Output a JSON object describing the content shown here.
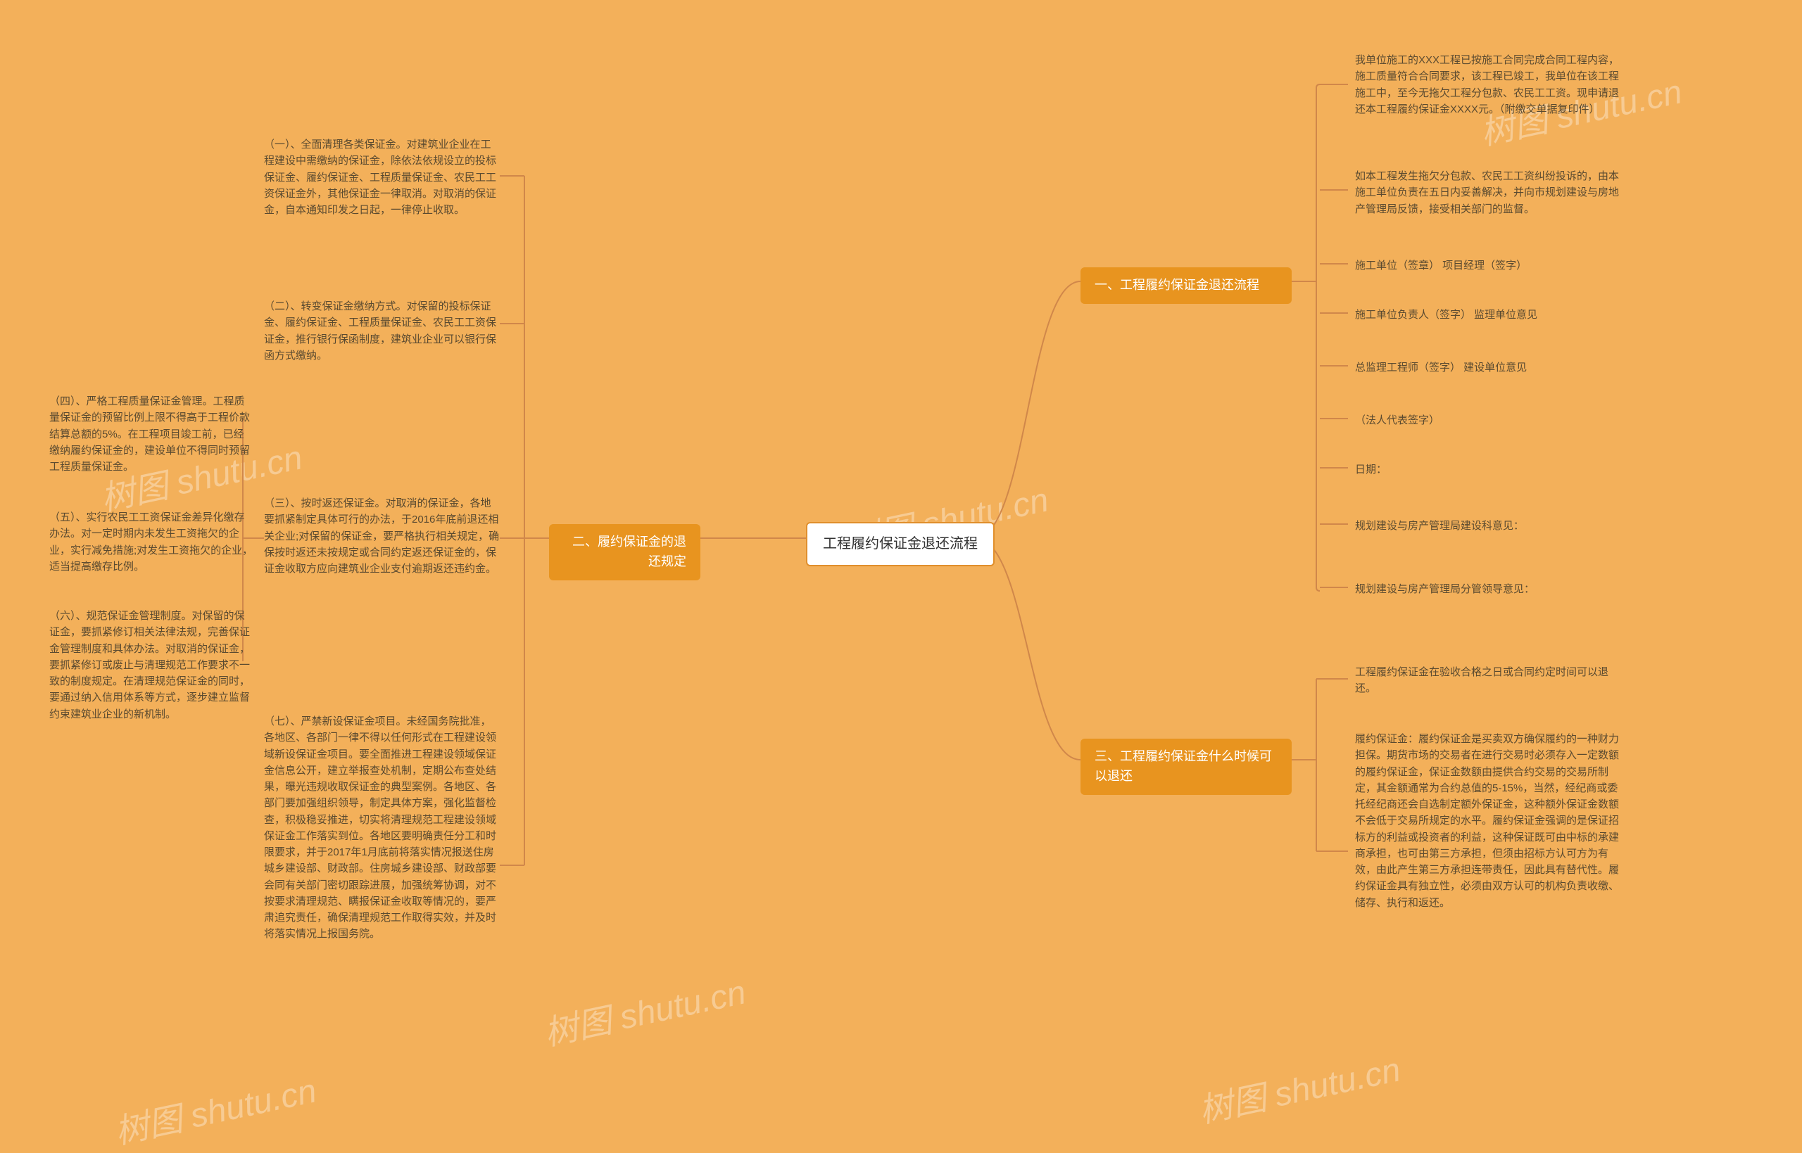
{
  "background_color": "#f3b05a",
  "root_bg": "#ffffff",
  "root_border": "#e08f2c",
  "branch_bg": "#e8941f",
  "branch_fg": "#ffffff",
  "leaf_fg": "#5a4a30",
  "connector_color": "#d0874a",
  "watermark_text": "树图 shutu.cn",
  "root": {
    "label": "工程履约保证金退还流程"
  },
  "right": [
    {
      "label": "一、工程履约保证金退还流程",
      "children": [
        "我单位施工的XXX工程已按施工合同完成合同工程内容，施工质量符合合同要求，该工程已竣工，我单位在该工程施工中，至今无拖欠工程分包款、农民工工资。现申请退还本工程履约保证金XXXX元。（附缴交单据复印件）",
        "如本工程发生拖欠分包款、农民工工资纠纷投诉的，由本施工单位负责在五日内妥善解决，并向市规划建设与房地产管理局反馈，接受相关部门的监督。",
        "施工单位（签章） 项目经理（签字）",
        "施工单位负责人（签字） 监理单位意见",
        "总监理工程师（签字） 建设单位意见",
        "（法人代表签字）",
        "日期：",
        "规划建设与房产管理局建设科意见：",
        "规划建设与房产管理局分管领导意见："
      ]
    },
    {
      "label": "三、工程履约保证金什么时候可以退还",
      "children": [
        "工程履约保证金在验收合格之日或合同约定时间可以退还。",
        "履约保证金：履约保证金是买卖双方确保履约的一种财力担保。期货市场的交易者在进行交易时必须存入一定数额的履约保证金，保证金数额由提供合约交易的交易所制定，其金额通常为合约总值的5-15%，当然，经纪商或委托经纪商还会自选制定额外保证金，这种额外保证金数额不会低于交易所规定的水平。履约保证金强调的是保证招标方的利益或投资者的利益，这种保证既可由中标的承建商承担，也可由第三方承担，但须由招标方认可方为有效，由此产生第三方承担连带责任，因此具有替代性。履约保证金具有独立性，必须由双方认可的机构负责收缴、储存、执行和返还。"
      ]
    }
  ],
  "left": [
    {
      "label": "二、履约保证金的退还规定",
      "children_direct": [
        "（一）、全面清理各类保证金。对建筑业企业在工程建设中需缴纳的保证金，除依法依规设立的投标保证金、履约保证金、工程质量保证金、农民工工资保证金外，其他保证金一律取消。对取消的保证金，自本通知印发之日起，一律停止收取。",
        "（二）、转变保证金缴纳方式。对保留的投标保证金、履约保证金、工程质量保证金、农民工工资保证金，推行银行保函制度，建筑业企业可以银行保函方式缴纳。",
        "（三）、按时返还保证金。对取消的保证金，各地要抓紧制定具体可行的办法，于2016年底前退还相关企业;对保留的保证金，要严格执行相关规定，确保按时返还未按规定或合同约定返还保证金的，保证金收取方应向建筑业企业支付逾期返还违约金。",
        "（七）、严禁新设保证金项目。未经国务院批准，各地区、各部门一律不得以任何形式在工程建设领域新设保证金项目。要全面推进工程建设领域保证金信息公开，建立举报查处机制，定期公布查处结果，曝光违规收取保证金的典型案例。各地区、各部门要加强组织领导，制定具体方案，强化监督检查，积极稳妥推进，切实将清理规范工程建设领域保证金工作落实到位。各地区要明确责任分工和时限要求，并于2017年1月底前将落实情况报送住房城乡建设部、财政部。住房城乡建设部、财政部要会同有关部门密切跟踪进展，加强统筹协调，对不按要求清理规范、瞒报保证金收取等情况的，要严肃追究责任，确保清理规范工作取得实效，并及时将落实情况上报国务院。"
      ],
      "sub_of_third": [
        "（四）、严格工程质量保证金管理。工程质量保证金的预留比例上限不得高于工程价款结算总额的5%。在工程项目竣工前，已经缴纳履约保证金的，建设单位不得同时预留工程质量保证金。",
        "（五）、实行农民工工资保证金差异化缴存办法。对一定时期内未发生工资拖欠的企业，实行减免措施;对发生工资拖欠的企业，适当提高缴存比例。",
        "（六）、规范保证金管理制度。对保留的保证金，要抓紧修订相关法律法规，完善保证金管理制度和具体办法。对取消的保证金，要抓紧修订或废止与清理规范工作要求不一致的制度规定。在清理规范保证金的同时，要通过纳入信用体系等方式，逐步建立监督约束建筑业企业的新机制。"
      ]
    }
  ]
}
